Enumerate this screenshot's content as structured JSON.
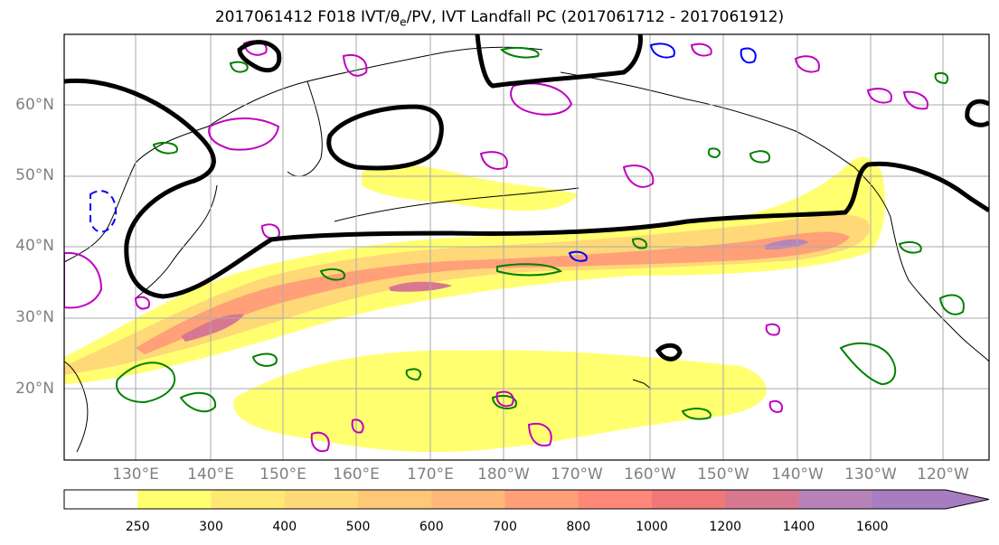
{
  "title": "2017061412 F018 IVT/θ",
  "title_sub": "e",
  "title_rest": "/PV, IVT Landfall PC (2017061712 - 2017061912)",
  "map": {
    "lat_labels": [
      "60°N",
      "50°N",
      "40°N",
      "30°N",
      "20°N"
    ],
    "lon_labels": [
      "130°E",
      "140°E",
      "150°E",
      "160°E",
      "170°E",
      "180°W",
      "170°W",
      "160°W",
      "150°W",
      "140°W",
      "130°W",
      "120°W"
    ],
    "grid": true,
    "colors": {
      "pv_positive": "#c000c0",
      "pv_negative": "#0000ff",
      "theta_e": "#008000",
      "ivt_pc": "#000000",
      "coast": "#000000"
    }
  },
  "colorbar": {
    "ticks": [
      "250",
      "300",
      "400",
      "500",
      "600",
      "700",
      "800",
      "1000",
      "1200",
      "1400",
      "1600"
    ],
    "colors": [
      "#ffffff",
      "#ffff70",
      "#ffe873",
      "#ffd878",
      "#ffc878",
      "#ffb878",
      "#ffa078",
      "#ff8878",
      "#f07878",
      "#d87890",
      "#b884b8",
      "#a87cc0"
    ],
    "extend": "max"
  }
}
